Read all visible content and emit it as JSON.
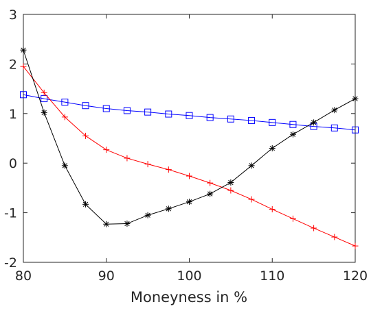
{
  "chart_data": {
    "type": "line",
    "xlabel": "Moneyness in %",
    "ylabel": "",
    "xlim": [
      80,
      120
    ],
    "ylim": [
      -2,
      3
    ],
    "xticks": [
      80,
      90,
      100,
      110,
      120
    ],
    "yticks": [
      3,
      2,
      1,
      0,
      -1,
      -2
    ],
    "grid": false,
    "x": [
      80,
      82.5,
      85,
      87.5,
      90,
      92.5,
      95,
      97.5,
      100,
      102.5,
      105,
      107.5,
      110,
      112.5,
      115,
      117.5,
      120
    ],
    "series": [
      {
        "marker": "square",
        "color": "#0000ff",
        "values": [
          1.38,
          1.3,
          1.23,
          1.16,
          1.1,
          1.06,
          1.03,
          0.99,
          0.96,
          0.92,
          0.89,
          0.86,
          0.82,
          0.78,
          0.74,
          0.71,
          0.67
        ]
      },
      {
        "marker": "plus",
        "color": "#ff0000",
        "values": [
          1.95,
          1.42,
          0.93,
          0.55,
          0.27,
          0.1,
          -0.02,
          -0.13,
          -0.26,
          -0.4,
          -0.55,
          -0.73,
          -0.93,
          -1.12,
          -1.31,
          -1.49,
          -1.67
        ]
      },
      {
        "marker": "asterisk",
        "color": "#000000",
        "values": [
          2.28,
          1.02,
          -0.05,
          -0.83,
          -1.23,
          -1.22,
          -1.05,
          -0.92,
          -0.78,
          -0.62,
          -0.39,
          -0.05,
          0.3,
          0.58,
          0.82,
          1.07,
          1.3
        ]
      }
    ]
  }
}
